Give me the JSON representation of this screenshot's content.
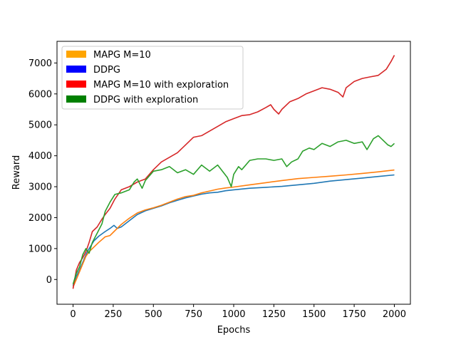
{
  "chart_data": {
    "type": "line",
    "title": "",
    "xlabel": "Epochs",
    "ylabel": "Reward",
    "xlim": [
      -100,
      2100
    ],
    "ylim": [
      -800,
      7700
    ],
    "xticks": [
      0,
      250,
      500,
      750,
      1000,
      1250,
      1500,
      1750,
      2000
    ],
    "yticks": [
      0,
      1000,
      2000,
      3000,
      4000,
      5000,
      6000,
      7000
    ],
    "grid": false,
    "legend_position": "top-left",
    "legend": [
      {
        "label": "MAPG M=10",
        "color": "#ffa500"
      },
      {
        "label": "DDPG",
        "color": "#0000ff"
      },
      {
        "label": "MAPG M=10 with exploration",
        "color": "#ff0000"
      },
      {
        "label": "DDPG with exploration",
        "color": "#008000"
      }
    ],
    "series": [
      {
        "color": "#1f77b4",
        "points": [
          [
            0,
            -200
          ],
          [
            20,
            100
          ],
          [
            40,
            300
          ],
          [
            60,
            550
          ],
          [
            80,
            800
          ],
          [
            100,
            1000
          ],
          [
            130,
            1250
          ],
          [
            160,
            1400
          ],
          [
            200,
            1550
          ],
          [
            230,
            1650
          ],
          [
            255,
            1750
          ],
          [
            275,
            1650
          ],
          [
            300,
            1700
          ],
          [
            350,
            1900
          ],
          [
            400,
            2100
          ],
          [
            450,
            2220
          ],
          [
            500,
            2300
          ],
          [
            550,
            2380
          ],
          [
            600,
            2480
          ],
          [
            650,
            2560
          ],
          [
            700,
            2640
          ],
          [
            750,
            2700
          ],
          [
            800,
            2760
          ],
          [
            850,
            2800
          ],
          [
            900,
            2820
          ],
          [
            950,
            2870
          ],
          [
            1000,
            2900
          ],
          [
            1100,
            2950
          ],
          [
            1200,
            2980
          ],
          [
            1300,
            3010
          ],
          [
            1400,
            3060
          ],
          [
            1500,
            3110
          ],
          [
            1600,
            3180
          ],
          [
            1700,
            3230
          ],
          [
            1800,
            3280
          ],
          [
            1900,
            3330
          ],
          [
            2000,
            3380
          ]
        ]
      },
      {
        "color": "#ff7f0e",
        "points": [
          [
            0,
            -250
          ],
          [
            20,
            0
          ],
          [
            40,
            250
          ],
          [
            60,
            500
          ],
          [
            80,
            750
          ],
          [
            100,
            900
          ],
          [
            130,
            1050
          ],
          [
            160,
            1200
          ],
          [
            200,
            1380
          ],
          [
            230,
            1420
          ],
          [
            255,
            1550
          ],
          [
            275,
            1650
          ],
          [
            300,
            1780
          ],
          [
            350,
            1980
          ],
          [
            400,
            2150
          ],
          [
            450,
            2250
          ],
          [
            500,
            2320
          ],
          [
            550,
            2400
          ],
          [
            600,
            2500
          ],
          [
            650,
            2600
          ],
          [
            700,
            2680
          ],
          [
            750,
            2720
          ],
          [
            800,
            2800
          ],
          [
            850,
            2860
          ],
          [
            900,
            2920
          ],
          [
            950,
            2960
          ],
          [
            1000,
            2990
          ],
          [
            1100,
            3060
          ],
          [
            1200,
            3130
          ],
          [
            1300,
            3200
          ],
          [
            1400,
            3260
          ],
          [
            1500,
            3300
          ],
          [
            1600,
            3340
          ],
          [
            1700,
            3380
          ],
          [
            1800,
            3430
          ],
          [
            1900,
            3480
          ],
          [
            2000,
            3540
          ]
        ]
      },
      {
        "color": "#d62728",
        "points": [
          [
            0,
            -300
          ],
          [
            20,
            300
          ],
          [
            40,
            550
          ],
          [
            60,
            700
          ],
          [
            80,
            900
          ],
          [
            100,
            1200
          ],
          [
            120,
            1550
          ],
          [
            150,
            1700
          ],
          [
            180,
            1950
          ],
          [
            200,
            2100
          ],
          [
            230,
            2300
          ],
          [
            260,
            2600
          ],
          [
            300,
            2900
          ],
          [
            350,
            3000
          ],
          [
            400,
            3150
          ],
          [
            450,
            3250
          ],
          [
            500,
            3550
          ],
          [
            550,
            3800
          ],
          [
            600,
            3950
          ],
          [
            650,
            4100
          ],
          [
            700,
            4350
          ],
          [
            750,
            4600
          ],
          [
            800,
            4650
          ],
          [
            850,
            4800
          ],
          [
            900,
            4950
          ],
          [
            950,
            5100
          ],
          [
            1000,
            5200
          ],
          [
            1050,
            5300
          ],
          [
            1100,
            5330
          ],
          [
            1150,
            5420
          ],
          [
            1200,
            5560
          ],
          [
            1230,
            5650
          ],
          [
            1250,
            5500
          ],
          [
            1280,
            5350
          ],
          [
            1300,
            5500
          ],
          [
            1350,
            5750
          ],
          [
            1400,
            5850
          ],
          [
            1450,
            6000
          ],
          [
            1500,
            6100
          ],
          [
            1550,
            6200
          ],
          [
            1600,
            6150
          ],
          [
            1650,
            6050
          ],
          [
            1680,
            5900
          ],
          [
            1700,
            6200
          ],
          [
            1750,
            6400
          ],
          [
            1800,
            6500
          ],
          [
            1850,
            6550
          ],
          [
            1900,
            6600
          ],
          [
            1950,
            6800
          ],
          [
            1980,
            7050
          ],
          [
            2000,
            7250
          ]
        ]
      },
      {
        "color": "#2ca02c",
        "points": [
          [
            0,
            -150
          ],
          [
            20,
            200
          ],
          [
            40,
            400
          ],
          [
            60,
            800
          ],
          [
            80,
            1000
          ],
          [
            100,
            850
          ],
          [
            120,
            1200
          ],
          [
            150,
            1500
          ],
          [
            180,
            1800
          ],
          [
            200,
            2200
          ],
          [
            230,
            2500
          ],
          [
            260,
            2750
          ],
          [
            300,
            2800
          ],
          [
            350,
            2900
          ],
          [
            380,
            3150
          ],
          [
            400,
            3250
          ],
          [
            430,
            2950
          ],
          [
            450,
            3200
          ],
          [
            500,
            3500
          ],
          [
            550,
            3550
          ],
          [
            600,
            3650
          ],
          [
            650,
            3450
          ],
          [
            700,
            3550
          ],
          [
            750,
            3400
          ],
          [
            800,
            3700
          ],
          [
            850,
            3500
          ],
          [
            900,
            3700
          ],
          [
            930,
            3500
          ],
          [
            960,
            3300
          ],
          [
            985,
            3000
          ],
          [
            1000,
            3400
          ],
          [
            1030,
            3650
          ],
          [
            1050,
            3550
          ],
          [
            1100,
            3850
          ],
          [
            1150,
            3900
          ],
          [
            1200,
            3900
          ],
          [
            1250,
            3850
          ],
          [
            1300,
            3900
          ],
          [
            1330,
            3650
          ],
          [
            1360,
            3800
          ],
          [
            1400,
            3900
          ],
          [
            1430,
            4150
          ],
          [
            1470,
            4250
          ],
          [
            1500,
            4200
          ],
          [
            1550,
            4400
          ],
          [
            1600,
            4300
          ],
          [
            1650,
            4450
          ],
          [
            1700,
            4500
          ],
          [
            1750,
            4400
          ],
          [
            1800,
            4450
          ],
          [
            1830,
            4200
          ],
          [
            1870,
            4550
          ],
          [
            1900,
            4650
          ],
          [
            1930,
            4500
          ],
          [
            1960,
            4350
          ],
          [
            1980,
            4300
          ],
          [
            2000,
            4400
          ]
        ]
      }
    ]
  }
}
